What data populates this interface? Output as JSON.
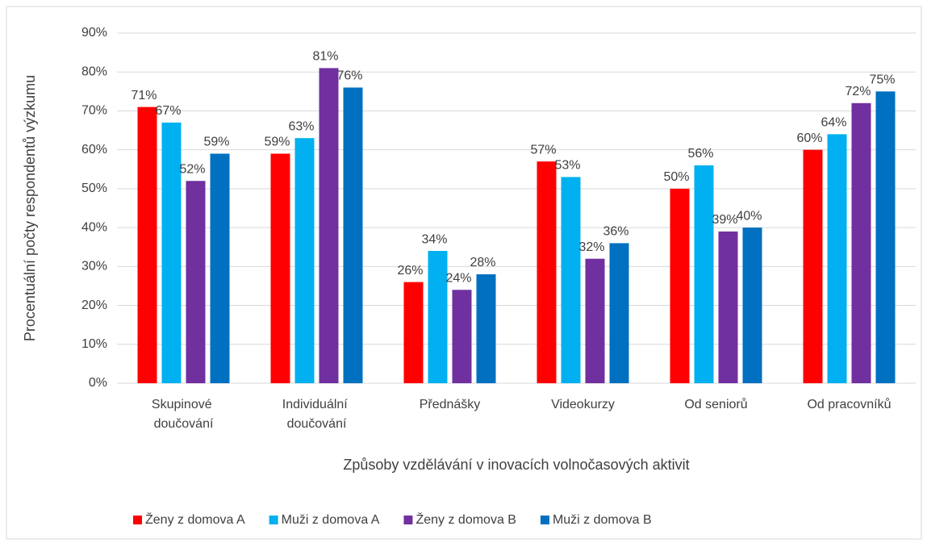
{
  "chart_data": {
    "type": "bar",
    "y_label": "Procentuální počty respondentů výzkumu",
    "x_label": "Způsoby vzdělávání v inovacích volnočasových aktivit",
    "categories": [
      "Skupinové doučování",
      "Individuální doučování",
      "Přednášky",
      "Videokurzy",
      "Od seniorů",
      "Od pracovníků"
    ],
    "series": [
      {
        "name": "Ženy z domova A",
        "color": "#ff0000",
        "values": [
          71,
          59,
          26,
          57,
          50,
          60
        ],
        "value_labels": [
          "71%",
          "59%",
          "26%",
          "57%",
          "50%",
          "60%"
        ]
      },
      {
        "name": "Muži z domova A",
        "color": "#00b0f0",
        "values": [
          67,
          63,
          34,
          53,
          56,
          64
        ],
        "value_labels": [
          "67%",
          "63%",
          "34%",
          "53%",
          "56%",
          "64%"
        ]
      },
      {
        "name": "Ženy z domova B",
        "color": "#7030a0",
        "values": [
          52,
          81,
          24,
          32,
          39,
          72
        ],
        "value_labels": [
          "52%",
          "81%",
          "24%",
          "32%",
          "39%",
          "72%"
        ]
      },
      {
        "name": "Muži z domova B",
        "color": "#0070c0",
        "values": [
          59,
          76,
          28,
          36,
          40,
          75
        ],
        "value_labels": [
          "59%",
          "76%",
          "28%",
          "36%",
          "40%",
          "75%"
        ]
      }
    ],
    "ylim": [
      0,
      90
    ],
    "yticks": [
      {
        "value": 0,
        "label": "0%"
      },
      {
        "value": 10,
        "label": "10%"
      },
      {
        "value": 20,
        "label": "20%"
      },
      {
        "value": 30,
        "label": "30%"
      },
      {
        "value": 40,
        "label": "40%"
      },
      {
        "value": 50,
        "label": "50%"
      },
      {
        "value": 60,
        "label": "60%"
      },
      {
        "value": 70,
        "label": "70%"
      },
      {
        "value": 80,
        "label": "80%"
      },
      {
        "value": 90,
        "label": "90%"
      }
    ],
    "grid": true,
    "legend": "bottom"
  }
}
